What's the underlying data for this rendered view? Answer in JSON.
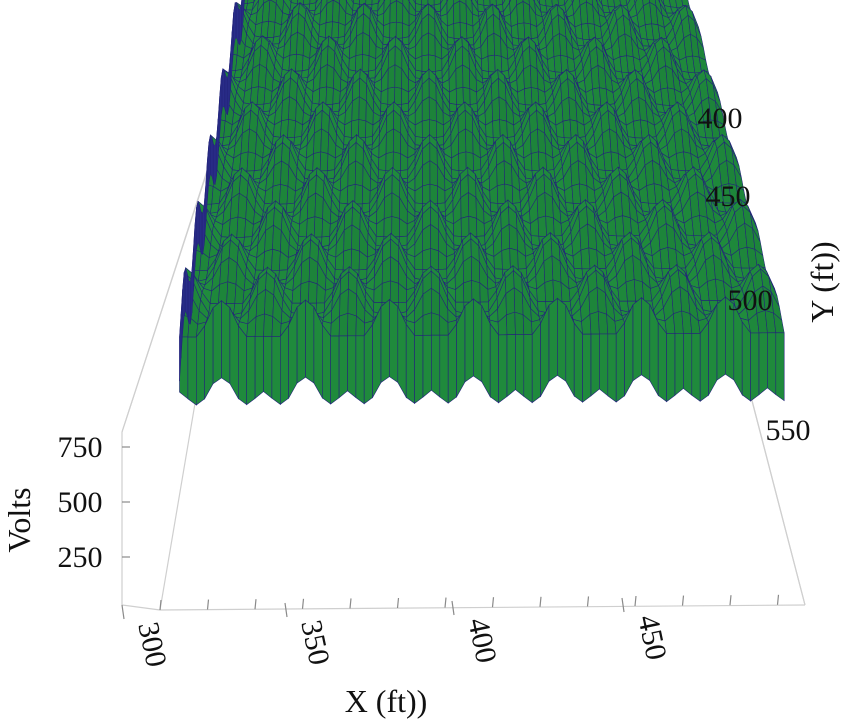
{
  "chart_data": {
    "type": "surface",
    "xlabel": "X (ft))",
    "ylabel": "Y (ft))",
    "zlabel": "Volts",
    "x_ticks": [
      "300",
      "350",
      "400",
      "450"
    ],
    "y_ticks": [
      "400",
      "450",
      "500",
      "550"
    ],
    "z_ticks": [
      "250",
      "500",
      "750"
    ],
    "xlim": [
      300,
      490
    ],
    "ylim": [
      375,
      565
    ],
    "zlim": [
      0,
      900
    ],
    "surface": {
      "description_free": true,
      "x_range": [
        305,
        485
      ],
      "y_range": [
        375,
        560
      ],
      "base_volts": 700,
      "amplitude_volts": 110,
      "x_period_ft": 25,
      "y_period_ft": 25
    },
    "colors": {
      "surface_fill": "#1f8a3c",
      "surface_grid": "#23237a",
      "box": "#cfcfcf",
      "text": "#111111"
    }
  }
}
